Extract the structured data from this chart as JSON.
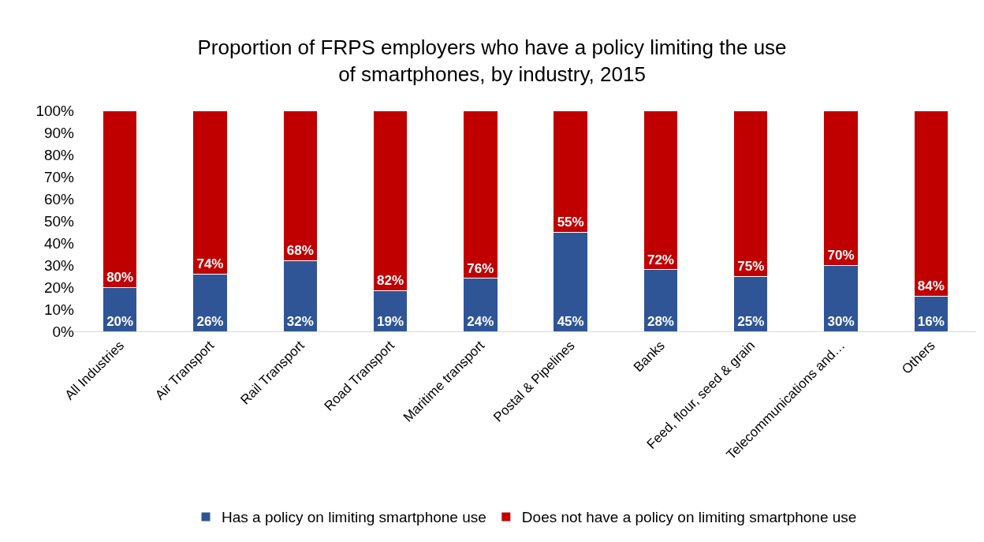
{
  "chart_data": {
    "type": "bar",
    "title": "Proportion of FRPS employers who have a policy limiting the use of smartphones, by industry, 2015",
    "categories": [
      "All Industries",
      "Air Transport",
      "Rail Transport",
      "Road Transport",
      "Maritime transport",
      "Postal & Pipelines",
      "Banks",
      "Feed, flour, seed & grain",
      "Telecommunications and…",
      "Others"
    ],
    "stacked": true,
    "series": [
      {
        "name": "Has a policy on limiting smartphone use",
        "color": "#2f5597",
        "values": [
          20,
          26,
          32,
          18.5,
          24,
          45,
          28,
          25,
          30,
          16
        ],
        "value_labels": [
          "20%",
          "26%",
          "32%",
          "19%",
          "24%",
          "45%",
          "28%",
          "25%",
          "30%",
          "16%"
        ]
      },
      {
        "name": "Does not have a policy on limiting smartphone use",
        "color": "#c00000",
        "values": [
          80,
          74,
          68,
          81.5,
          76,
          55,
          72,
          75,
          70,
          84
        ],
        "value_labels": [
          "80%",
          "74%",
          "68%",
          "82%",
          "76%",
          "55%",
          "72%",
          "75%",
          "70%",
          "84%"
        ]
      }
    ],
    "ylim": [
      0,
      100
    ],
    "yticks": [
      {
        "value": 0,
        "label": "0%"
      },
      {
        "value": 10,
        "label": "10%"
      },
      {
        "value": 20,
        "label": "20%"
      },
      {
        "value": 30,
        "label": "30%"
      },
      {
        "value": 40,
        "label": "40%"
      },
      {
        "value": 50,
        "label": "50%"
      },
      {
        "value": 60,
        "label": "60%"
      },
      {
        "value": 70,
        "label": "70%"
      },
      {
        "value": 80,
        "label": "80%"
      },
      {
        "value": 90,
        "label": "90%"
      },
      {
        "value": 100,
        "label": "100%"
      }
    ],
    "legend": "bottom"
  }
}
